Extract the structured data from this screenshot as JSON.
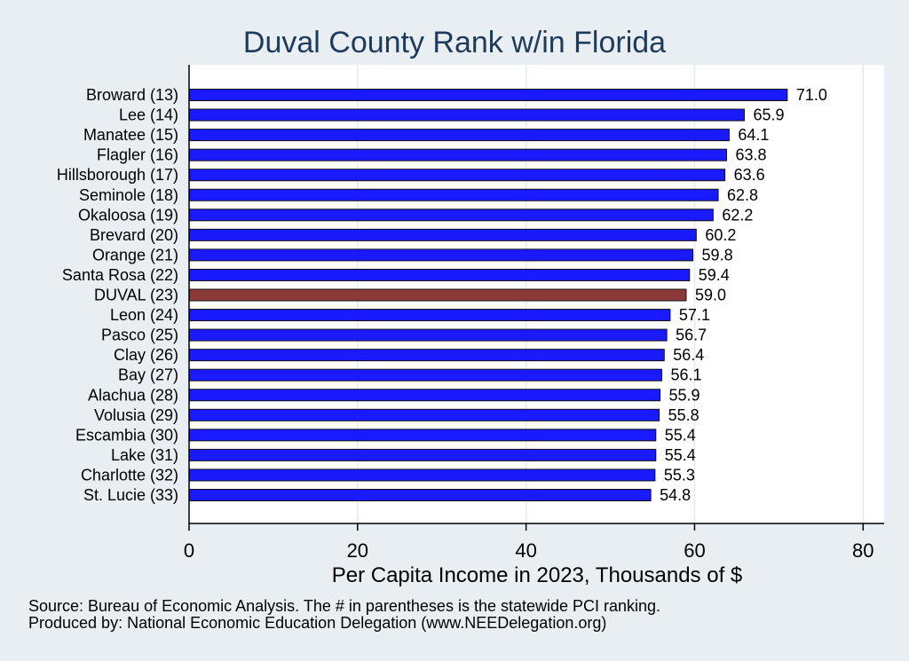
{
  "chart_data": {
    "type": "bar",
    "orientation": "horizontal",
    "title": "Duval County Rank w/in Florida",
    "xlabel": "Per Capita Income in 2023, Thousands of $",
    "ylabel": "",
    "xlim": [
      0,
      82.5
    ],
    "xticks": [
      0,
      20,
      40,
      60,
      80
    ],
    "grid": true,
    "categories": [
      "Broward (13)",
      "Lee (14)",
      "Manatee (15)",
      "Flagler (16)",
      "Hillsborough (17)",
      "Seminole (18)",
      "Okaloosa (19)",
      "Brevard (20)",
      "Orange (21)",
      "Santa Rosa (22)",
      "DUVAL (23)",
      "Leon (24)",
      "Pasco (25)",
      "Clay (26)",
      "Bay (27)",
      "Alachua (28)",
      "Volusia (29)",
      "Escambia (30)",
      "Lake (31)",
      "Charlotte (32)",
      "St. Lucie (33)"
    ],
    "values": [
      71.0,
      65.9,
      64.1,
      63.8,
      63.6,
      62.8,
      62.2,
      60.2,
      59.8,
      59.4,
      59.0,
      57.1,
      56.7,
      56.4,
      56.1,
      55.9,
      55.8,
      55.4,
      55.4,
      55.3,
      54.8
    ],
    "value_labels": [
      "71.0",
      "65.9",
      "64.1",
      "63.8",
      "63.6",
      "62.8",
      "62.2",
      "60.2",
      "59.8",
      "59.4",
      "59.0",
      "57.1",
      "56.7",
      "56.4",
      "56.1",
      "55.9",
      "55.8",
      "55.4",
      "55.4",
      "55.3",
      "54.8"
    ],
    "highlight_index": 10,
    "colors": {
      "bar": "#1a1aff",
      "highlight": "#8b3a3a",
      "background": "#e8eef2",
      "plot_bg": "#ffffff",
      "title": "#1f3b5c"
    }
  },
  "notes": {
    "source": "Source: Bureau of Economic Analysis. The # in parentheses is the statewide PCI ranking.",
    "producer": "Produced by: National Economic Education Delegation (www.NEEDelegation.org)"
  }
}
